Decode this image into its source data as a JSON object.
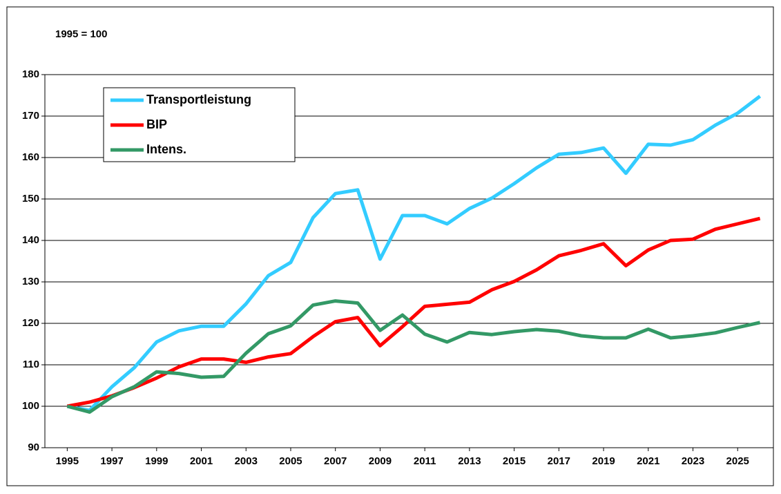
{
  "chart_data": {
    "type": "line",
    "title": "1995 = 100",
    "x": [
      1995,
      1996,
      1997,
      1998,
      1999,
      2000,
      2001,
      2002,
      2003,
      2004,
      2005,
      2006,
      2007,
      2008,
      2009,
      2010,
      2011,
      2012,
      2013,
      2014,
      2015,
      2016,
      2017,
      2018,
      2019,
      2020,
      2021,
      2022,
      2023,
      2024,
      2025,
      2026
    ],
    "series": [
      {
        "name": "Transportleistung",
        "color": "#33ccff",
        "values": [
          100,
          99,
          104.7,
          109.3,
          115.5,
          118.2,
          119.3,
          119.3,
          124.7,
          131.5,
          134.7,
          145.5,
          151.3,
          152.2,
          135.5,
          146,
          146,
          144,
          147.7,
          150.2,
          153.7,
          157.5,
          160.8,
          161.2,
          162.3,
          156.2,
          163.2,
          163,
          164.3,
          167.8,
          170.7,
          174.8
        ]
      },
      {
        "name": "BIP",
        "color": "#ff0000",
        "values": [
          100,
          101,
          102.5,
          104.5,
          106.8,
          109.5,
          111.4,
          111.4,
          110.6,
          111.9,
          112.7,
          116.8,
          120.4,
          121.4,
          114.6,
          119.2,
          124.1,
          124.6,
          125.1,
          128.1,
          130.1,
          132.9,
          136.3,
          137.6,
          139.2,
          133.9,
          137.7,
          140,
          140.3,
          142.7,
          144,
          145.3
        ]
      },
      {
        "name": "Intens.",
        "color": "#339966",
        "values": [
          100,
          98.6,
          102.3,
          104.7,
          108.3,
          107.9,
          107,
          107.2,
          112.8,
          117.5,
          119.4,
          124.4,
          125.4,
          124.9,
          118.3,
          122,
          117.4,
          115.5,
          117.8,
          117.3,
          118,
          118.5,
          118.1,
          117,
          116.5,
          116.5,
          118.6,
          116.5,
          117,
          117.7,
          119,
          120.2
        ]
      }
    ],
    "xlim": [
      1994,
      2026.6
    ],
    "xticks": [
      1995,
      1997,
      1999,
      2001,
      2003,
      2005,
      2007,
      2009,
      2011,
      2013,
      2015,
      2017,
      2019,
      2021,
      2023,
      2025
    ],
    "ylim": [
      90,
      180
    ],
    "yticks": [
      90,
      100,
      110,
      120,
      130,
      140,
      150,
      160,
      170,
      180
    ],
    "grid": true,
    "legend": "upper left"
  }
}
